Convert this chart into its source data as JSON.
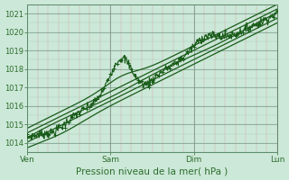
{
  "title": "",
  "xlabel": "Pression niveau de la mer( hPa )",
  "ylabel": "",
  "bg_color": "#cce8d8",
  "line_color": "#1a5c1a",
  "tick_label_color": "#2d6e2d",
  "xlabel_color": "#2d6e2d",
  "ylim": [
    1013.5,
    1021.5
  ],
  "xlim": [
    0,
    72
  ],
  "xtick_positions": [
    0,
    24,
    48,
    72
  ],
  "xtick_labels": [
    "Ven",
    "Sam",
    "Dim",
    "Lun"
  ],
  "ytick_positions": [
    1014,
    1015,
    1016,
    1017,
    1018,
    1019,
    1020,
    1021
  ],
  "figsize": [
    3.2,
    2.0
  ],
  "dpi": 100
}
